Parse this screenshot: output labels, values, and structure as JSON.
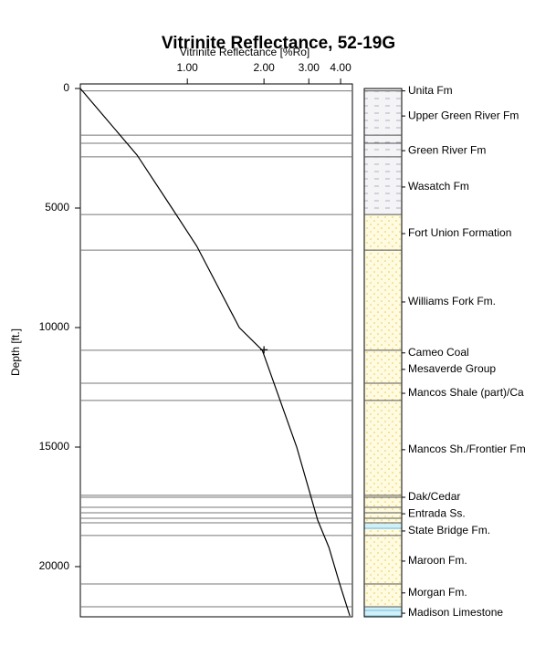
{
  "chart_data": {
    "type": "line",
    "title": "Vitrinite Reflectance, 52-19G",
    "x_label": "Vitrinite Reflectance [%Ro]",
    "y_label": "Depth [ft.]",
    "x_log": true,
    "xlim": [
      0.38,
      4.45
    ],
    "xticks": [
      {
        "value": 1,
        "label": "1.00"
      },
      {
        "value": 2,
        "label": "2.00"
      },
      {
        "value": 3,
        "label": "3.00"
      },
      {
        "value": 4,
        "label": "4.00"
      }
    ],
    "ylim": [
      0,
      22100
    ],
    "y_inverted": true,
    "yticks": [
      0,
      5000,
      10000,
      15000,
      20000
    ],
    "depth": [
      0,
      2790,
      5000,
      6600,
      10000,
      10950,
      15000,
      18050,
      19200,
      20700,
      22060
    ],
    "series": [
      {
        "color": "#000000",
        "values": [
          0.38,
          0.635,
          0.87,
          1.09,
          1.6,
          1.97,
          2.69,
          3.25,
          3.6,
          3.96,
          4.35
        ]
      }
    ],
    "sample": {
      "value": 2.0,
      "depth": 10930
    },
    "horizons": [
      100,
      1950,
      2290,
      2860,
      5270,
      6760,
      10950,
      12330,
      13050,
      17020,
      17100,
      17520,
      17750,
      17980,
      18170,
      18700,
      20725,
      21680
    ],
    "formations": [
      {
        "name": "Unita Fm",
        "depth": 100
      },
      {
        "name": "Upper Green River Fm",
        "depth": 1150
      },
      {
        "name": "Green River Fm",
        "depth": 2600
      },
      {
        "name": "Wasatch Fm",
        "depth": 4120
      },
      {
        "name": "Fort Union Formation",
        "depth": 6070
      },
      {
        "name": "Williams Fork Fm.",
        "depth": 8930
      },
      {
        "name": "Cameo Coal",
        "depth": 11060
      },
      {
        "name": "Mesaverde Group",
        "depth": 11750
      },
      {
        "name": "Mancos Shale (part)/Ca",
        "depth": 12750
      },
      {
        "name": "Mancos Sh./Frontier Fm",
        "depth": 15110
      },
      {
        "name": "Dak/Cedar",
        "depth": 17100
      },
      {
        "name": "Entrada Ss.",
        "depth": 17790
      },
      {
        "name": "State Bridge Fm.",
        "depth": 18510
      },
      {
        "name": "Maroon Fm.",
        "depth": 19770
      },
      {
        "name": "Morgan Fm.",
        "depth": 21100
      },
      {
        "name": "Madison Limestone",
        "depth": 21950
      }
    ]
  }
}
